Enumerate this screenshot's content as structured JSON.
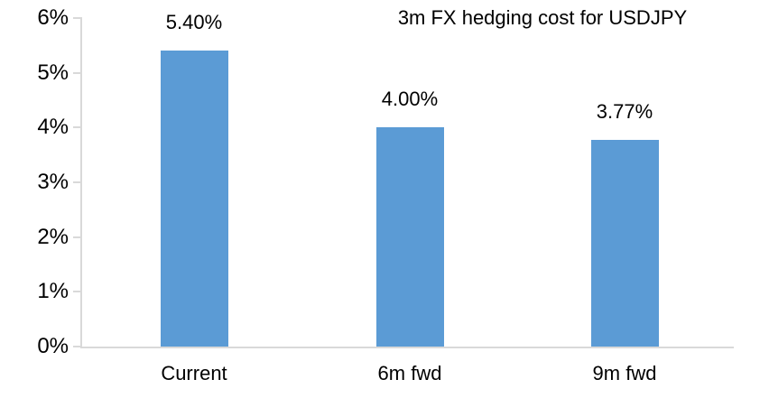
{
  "chart_data": {
    "type": "bar",
    "title": "3m FX hedging cost for USDJPY",
    "categories": [
      "Current",
      "6m fwd",
      "9m fwd"
    ],
    "values": [
      5.4,
      4.0,
      3.77
    ],
    "value_labels": [
      "5.40%",
      "4.00%",
      "3.77%"
    ],
    "xlabel": "",
    "ylabel": "",
    "ylim": [
      0,
      6
    ],
    "ytick_step": 1,
    "ytick_labels": [
      "0%",
      "1%",
      "2%",
      "3%",
      "4%",
      "5%",
      "6%"
    ],
    "grid": false,
    "legend_position": "none",
    "colors": {
      "bar": "#5B9BD5",
      "axis": "#D9D9D9",
      "text": "#000000",
      "background": "#FFFFFF"
    }
  }
}
